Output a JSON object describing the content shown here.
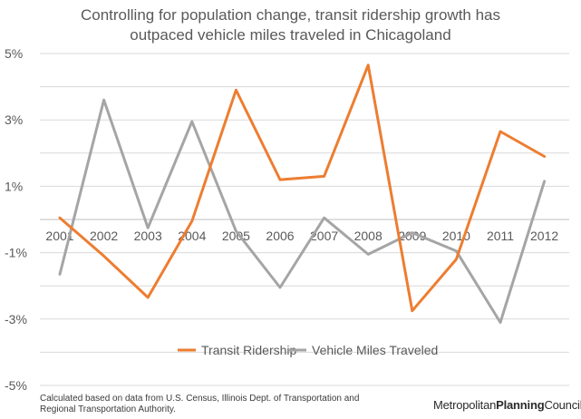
{
  "title_lines": [
    "Controlling for population change, transit ridership growth has",
    "outpaced vehicle miles traveled in Chicagoland"
  ],
  "footnote_lines": [
    "Calculated based on data from U.S. Census, Illinois Dept. of Transportation and",
    "Regional Transportation Authority."
  ],
  "logo": {
    "part1": "Metropolitan",
    "part2": "Planning",
    "part3": "Council"
  },
  "chart_data": {
    "type": "line",
    "title": "Controlling for population change, transit ridership growth has outpaced vehicle miles traveled in Chicagoland",
    "x": [
      "2001",
      "2002",
      "2003",
      "2004",
      "2005",
      "2006",
      "2007",
      "2008",
      "2009",
      "2010",
      "2011",
      "2012"
    ],
    "ylim": [
      -5,
      5
    ],
    "yticks": [
      5,
      3,
      1,
      -1,
      -3,
      -5
    ],
    "ytick_labels": [
      "5%",
      "3%",
      "1%",
      "-1%",
      "-3%",
      "-5%"
    ],
    "grid": true,
    "legend_position": "bottom",
    "series": [
      {
        "name": "Transit Ridership",
        "color": "#ED7D31",
        "values": [
          0.05,
          -1.1,
          -2.35,
          -0.05,
          3.9,
          1.2,
          1.3,
          4.65,
          -2.75,
          -1.2,
          2.65,
          1.9
        ]
      },
      {
        "name": "Vehicle Miles Traveled",
        "color": "#A5A5A5",
        "values": [
          -1.65,
          3.6,
          -0.25,
          2.95,
          -0.35,
          -2.05,
          0.05,
          -1.05,
          -0.4,
          -0.95,
          -3.1,
          1.15
        ]
      }
    ]
  }
}
